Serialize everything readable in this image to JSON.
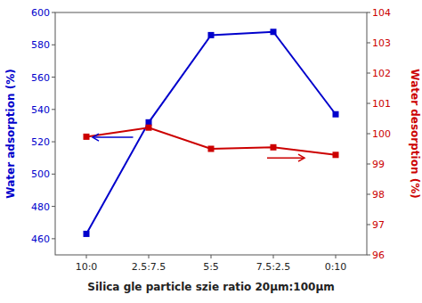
{
  "chart_data": {
    "type": "line",
    "x_label": "Silica gle particle szie ratio 20μm:100μm",
    "y_label": "Water adsorption (%)",
    "y2_label": "Water desorption (%)",
    "categories": [
      "10:0",
      "2.5:7.5",
      "5:5",
      "7.5:2.5",
      "0:10"
    ],
    "series": [
      {
        "color": "#0000cc",
        "marker": "square",
        "values": [
          463,
          532,
          586,
          588,
          537
        ]
      },
      {
        "color": "#cc0000",
        "marker": "square",
        "axis": "y2",
        "values": [
          99.9,
          100.2,
          99.5,
          99.55,
          99.3
        ]
      }
    ],
    "ylim": [
      450,
      600
    ],
    "yticks": [
      460,
      480,
      500,
      520,
      540,
      560,
      580,
      600
    ],
    "y2lim": [
      96,
      104
    ],
    "y2ticks": [
      96,
      97,
      98,
      99,
      100,
      101,
      102,
      103,
      104
    ],
    "grid": false
  }
}
